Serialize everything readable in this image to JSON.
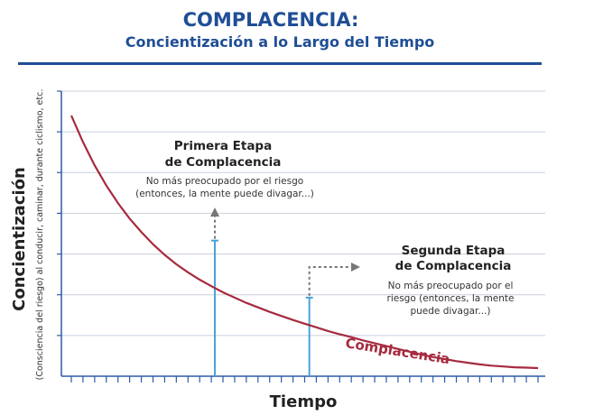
{
  "title": "COMPLACENCIA:",
  "subtitle": "Concientización a lo Largo del Tiempo",
  "colors": {
    "heading": "#1f4e96",
    "curve": "#a62b3e",
    "marker": "#4aa3d6",
    "grid": "#c8cfdc",
    "axis": "#2e5aa8",
    "arrow": "#777777"
  },
  "chart_data": {
    "type": "line",
    "title": "COMPLACENCIA:",
    "subtitle": "Concientización a lo Largo del Tiempo",
    "xlabel": "Tiempo",
    "ylabel": "Concientización",
    "ylabel_sub": "(Consciencia del riesgo) al conducir, caminar, durante ciclismo, etc.",
    "grid": true,
    "series": [
      {
        "name": "Complacencia",
        "x": [
          0,
          1,
          2,
          3,
          4,
          5,
          6,
          7,
          8,
          9,
          10,
          11,
          12,
          13,
          14,
          15,
          16,
          17,
          18,
          19,
          20,
          21,
          22,
          23,
          24,
          25,
          26,
          27,
          28,
          29,
          30,
          31,
          32,
          33,
          34,
          35,
          36,
          37,
          38,
          39,
          40
        ],
        "y": [
          6.4,
          5.75,
          5.18,
          4.68,
          4.25,
          3.87,
          3.54,
          3.24,
          2.98,
          2.75,
          2.55,
          2.37,
          2.21,
          2.06,
          1.93,
          1.8,
          1.69,
          1.58,
          1.48,
          1.38,
          1.29,
          1.2,
          1.11,
          1.03,
          0.96,
          0.88,
          0.81,
          0.74,
          0.67,
          0.6,
          0.53,
          0.47,
          0.42,
          0.37,
          0.33,
          0.29,
          0.26,
          0.24,
          0.22,
          0.21,
          0.2
        ]
      }
    ],
    "xlim": [
      0,
      40
    ],
    "ylim": [
      0,
      7
    ],
    "annotations": [
      {
        "heading": "Primera Etapa\nde Complacencia",
        "text": "No más preocupado por el riesgo\n(entonces, la mente puede divagar...)",
        "marker_x": 12.3,
        "marker_top": 3.33
      },
      {
        "heading": "Segunda Etapa\nde Complacencia",
        "text": "No más preocupado por el\nriesgo (entonces, la mente\npuede divagar...)",
        "marker_x": 20.4,
        "marker_top": 1.93
      }
    ],
    "curve_label": "Complacencia"
  }
}
